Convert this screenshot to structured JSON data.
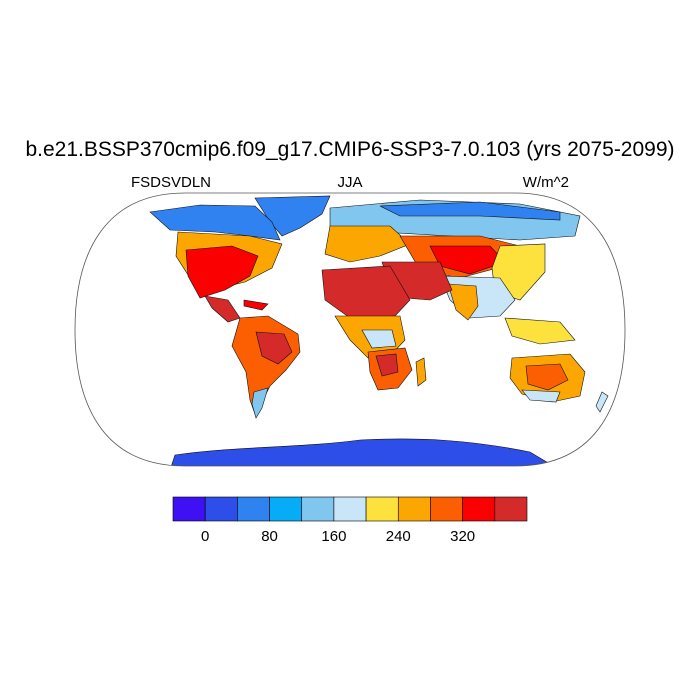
{
  "figure": {
    "title": "b.e21.BSSP370cmip6.f09_g17.CMIP6-SSP3-7.0.103 (yrs 2075-2099)",
    "variable": "FSDSVDLN",
    "season": "JJA",
    "units": "W/m^2"
  },
  "colorbar": {
    "colors": [
      "#4010f5",
      "#2d4ee8",
      "#2f82f0",
      "#06acf5",
      "#80c6ee",
      "#c8e6f8",
      "#fde13d",
      "#fca602",
      "#fb5f02",
      "#fb0000",
      "#d42a2a"
    ],
    "tick_labels": [
      "0",
      "80",
      "160",
      "240",
      "320"
    ]
  },
  "land_colors": {
    "ice": "#2d4ee8",
    "cold": "#2f82f0",
    "cool": "#80c6ee",
    "mild": "#c8e6f8",
    "warm": "#fde13d",
    "hot": "#fca602",
    "hotter": "#fb5f02",
    "veryhot": "#fb0000",
    "max": "#d42a2a"
  }
}
